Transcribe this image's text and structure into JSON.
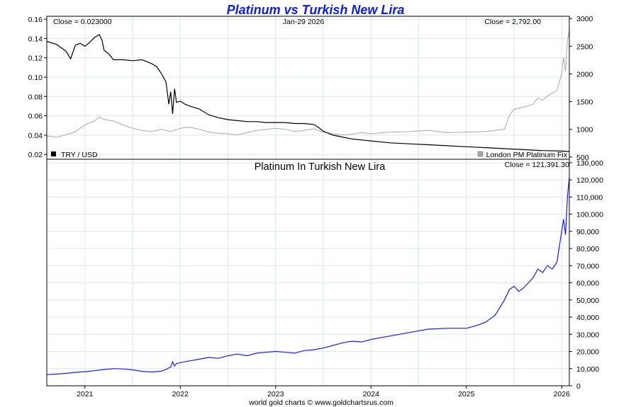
{
  "title": "Platinum vs Turkish New Lira",
  "footer": "world gold charts © www.goldchartsrus.com",
  "colors": {
    "title": "#0a1ee6",
    "blue_line": "#1a1aff",
    "black_line": "#000000",
    "gray_line": "#a8a8a8",
    "grid": "#dbe8ec"
  },
  "chart_data": [
    {
      "type": "line",
      "title": "",
      "date_label": "Jan-29  2026",
      "left_close": "Close = 0.023000",
      "right_close": "Close = 2,792.00",
      "x_ticks": [
        "2021",
        "2022",
        "2023",
        "2024",
        "2025",
        "2026"
      ],
      "x_tick_values": [
        2021.0,
        2022.0,
        2023.0,
        2024.0,
        2025.0,
        2026.0
      ],
      "xlim": [
        2020.6,
        2026.08
      ],
      "y_left_ticks": [
        "0.02",
        "0.04",
        "0.06",
        "0.08",
        "0.10",
        "0.12",
        "0.14",
        "0.16"
      ],
      "y_left_tick_values": [
        0.02,
        0.04,
        0.06,
        0.08,
        0.1,
        0.12,
        0.14,
        0.16
      ],
      "y_left_lim": [
        0.015,
        0.163
      ],
      "y_right_ticks": [
        "500",
        "1000",
        "1500",
        "2000",
        "2500",
        "3000"
      ],
      "y_right_tick_values": [
        500,
        1000,
        1500,
        2000,
        2500,
        3000
      ],
      "y_right_lim": [
        460,
        3040
      ],
      "legend_left": "TRY / USD",
      "legend_right": "London PM Platinum Fix",
      "series": [
        {
          "name": "TRY / USD",
          "axis": "left",
          "x": [
            2020.6,
            2020.7,
            2020.8,
            2020.85,
            2020.9,
            2020.95,
            2021.0,
            2021.05,
            2021.1,
            2021.15,
            2021.18,
            2021.2,
            2021.25,
            2021.3,
            2021.4,
            2021.5,
            2021.6,
            2021.7,
            2021.75,
            2021.8,
            2021.85,
            2021.88,
            2021.9,
            2021.92,
            2021.94,
            2021.96,
            2022.0,
            2022.05,
            2022.1,
            2022.2,
            2022.3,
            2022.4,
            2022.5,
            2022.6,
            2022.7,
            2022.8,
            2022.9,
            2023.0,
            2023.1,
            2023.2,
            2023.3,
            2023.4,
            2023.45,
            2023.5,
            2023.6,
            2023.7,
            2023.8,
            2023.9,
            2024.0,
            2024.2,
            2024.4,
            2024.6,
            2024.8,
            2025.0,
            2025.2,
            2025.4,
            2025.6,
            2025.8,
            2026.0,
            2026.08
          ],
          "values": [
            0.137,
            0.134,
            0.127,
            0.119,
            0.133,
            0.135,
            0.132,
            0.136,
            0.141,
            0.144,
            0.138,
            0.128,
            0.124,
            0.118,
            0.118,
            0.117,
            0.118,
            0.114,
            0.111,
            0.104,
            0.095,
            0.072,
            0.085,
            0.062,
            0.088,
            0.074,
            0.075,
            0.072,
            0.07,
            0.067,
            0.061,
            0.058,
            0.056,
            0.055,
            0.054,
            0.054,
            0.053,
            0.053,
            0.053,
            0.052,
            0.052,
            0.051,
            0.048,
            0.044,
            0.04,
            0.038,
            0.036,
            0.035,
            0.034,
            0.032,
            0.031,
            0.03,
            0.029,
            0.028,
            0.027,
            0.026,
            0.025,
            0.024,
            0.0235,
            0.023
          ]
        },
        {
          "name": "London PM Platinum Fix",
          "axis": "right",
          "x": [
            2020.6,
            2020.7,
            2020.8,
            2020.9,
            2021.0,
            2021.1,
            2021.15,
            2021.2,
            2021.3,
            2021.4,
            2021.5,
            2021.6,
            2021.7,
            2021.8,
            2021.9,
            2022.0,
            2022.1,
            2022.2,
            2022.3,
            2022.4,
            2022.5,
            2022.6,
            2022.7,
            2022.8,
            2022.9,
            2023.0,
            2023.1,
            2023.2,
            2023.3,
            2023.4,
            2023.5,
            2023.6,
            2023.7,
            2023.8,
            2023.9,
            2024.0,
            2024.2,
            2024.4,
            2024.6,
            2024.8,
            2025.0,
            2025.2,
            2025.3,
            2025.4,
            2025.45,
            2025.5,
            2025.6,
            2025.7,
            2025.75,
            2025.8,
            2025.85,
            2025.9,
            2025.95,
            2026.0,
            2026.02,
            2026.04,
            2026.06,
            2026.08
          ],
          "values": [
            880,
            860,
            900,
            960,
            1080,
            1150,
            1220,
            1180,
            1150,
            1080,
            1020,
            980,
            960,
            1000,
            960,
            1020,
            1040,
            1000,
            950,
            930,
            920,
            900,
            940,
            980,
            1000,
            1020,
            1000,
            960,
            980,
            1010,
            950,
            920,
            900,
            910,
            940,
            920,
            950,
            960,
            980,
            940,
            950,
            960,
            980,
            1000,
            1250,
            1360,
            1400,
            1450,
            1570,
            1520,
            1600,
            1650,
            1700,
            2000,
            2300,
            2050,
            2600,
            2792
          ]
        }
      ]
    },
    {
      "type": "line",
      "title": "Platinum In Turkish New Lira",
      "close_label": "Close = 121,391.30",
      "x_ticks": [
        "2021",
        "2022",
        "2023",
        "2024",
        "2025",
        "2026"
      ],
      "x_tick_values": [
        2021.0,
        2022.0,
        2023.0,
        2024.0,
        2025.0,
        2026.0
      ],
      "xlim": [
        2020.6,
        2026.08
      ],
      "y_ticks": [
        "0",
        "10,000",
        "20,000",
        "30,000",
        "40,000",
        "50,000",
        "60,000",
        "70,000",
        "80,000",
        "90,000",
        "100,000",
        "110,000",
        "120,000",
        "130,000"
      ],
      "y_tick_values": [
        0,
        10000,
        20000,
        30000,
        40000,
        50000,
        60000,
        70000,
        80000,
        90000,
        100000,
        110000,
        120000,
        130000
      ],
      "ylim": [
        0,
        132000
      ],
      "series": [
        {
          "name": "Platinum In Turkish New Lira",
          "x": [
            2020.6,
            2020.7,
            2020.8,
            2020.9,
            2021.0,
            2021.1,
            2021.2,
            2021.3,
            2021.4,
            2021.5,
            2021.6,
            2021.7,
            2021.8,
            2021.85,
            2021.9,
            2021.92,
            2021.94,
            2021.96,
            2022.0,
            2022.1,
            2022.2,
            2022.3,
            2022.4,
            2022.5,
            2022.6,
            2022.7,
            2022.8,
            2022.9,
            2023.0,
            2023.1,
            2023.2,
            2023.3,
            2023.4,
            2023.5,
            2023.6,
            2023.7,
            2023.8,
            2023.9,
            2024.0,
            2024.2,
            2024.4,
            2024.6,
            2024.8,
            2025.0,
            2025.1,
            2025.2,
            2025.3,
            2025.4,
            2025.45,
            2025.5,
            2025.55,
            2025.6,
            2025.65,
            2025.7,
            2025.75,
            2025.8,
            2025.85,
            2025.9,
            2025.95,
            2026.0,
            2026.02,
            2026.04,
            2026.06,
            2026.08
          ],
          "values": [
            6500,
            6800,
            7200,
            7800,
            8200,
            8800,
            9500,
            10000,
            9800,
            9300,
            8400,
            8000,
            8500,
            9500,
            11000,
            14000,
            11500,
            13000,
            13500,
            14500,
            15500,
            16500,
            16000,
            17500,
            18500,
            17500,
            19000,
            19500,
            20000,
            19500,
            19000,
            20500,
            21000,
            22000,
            23500,
            25000,
            26000,
            25500,
            27000,
            29000,
            31000,
            33000,
            33500,
            33500,
            35000,
            37000,
            41000,
            50000,
            56000,
            58000,
            55000,
            57000,
            60000,
            63000,
            68000,
            66000,
            70000,
            68000,
            72000,
            90000,
            97000,
            88000,
            110000,
            121391.3
          ]
        }
      ]
    }
  ]
}
